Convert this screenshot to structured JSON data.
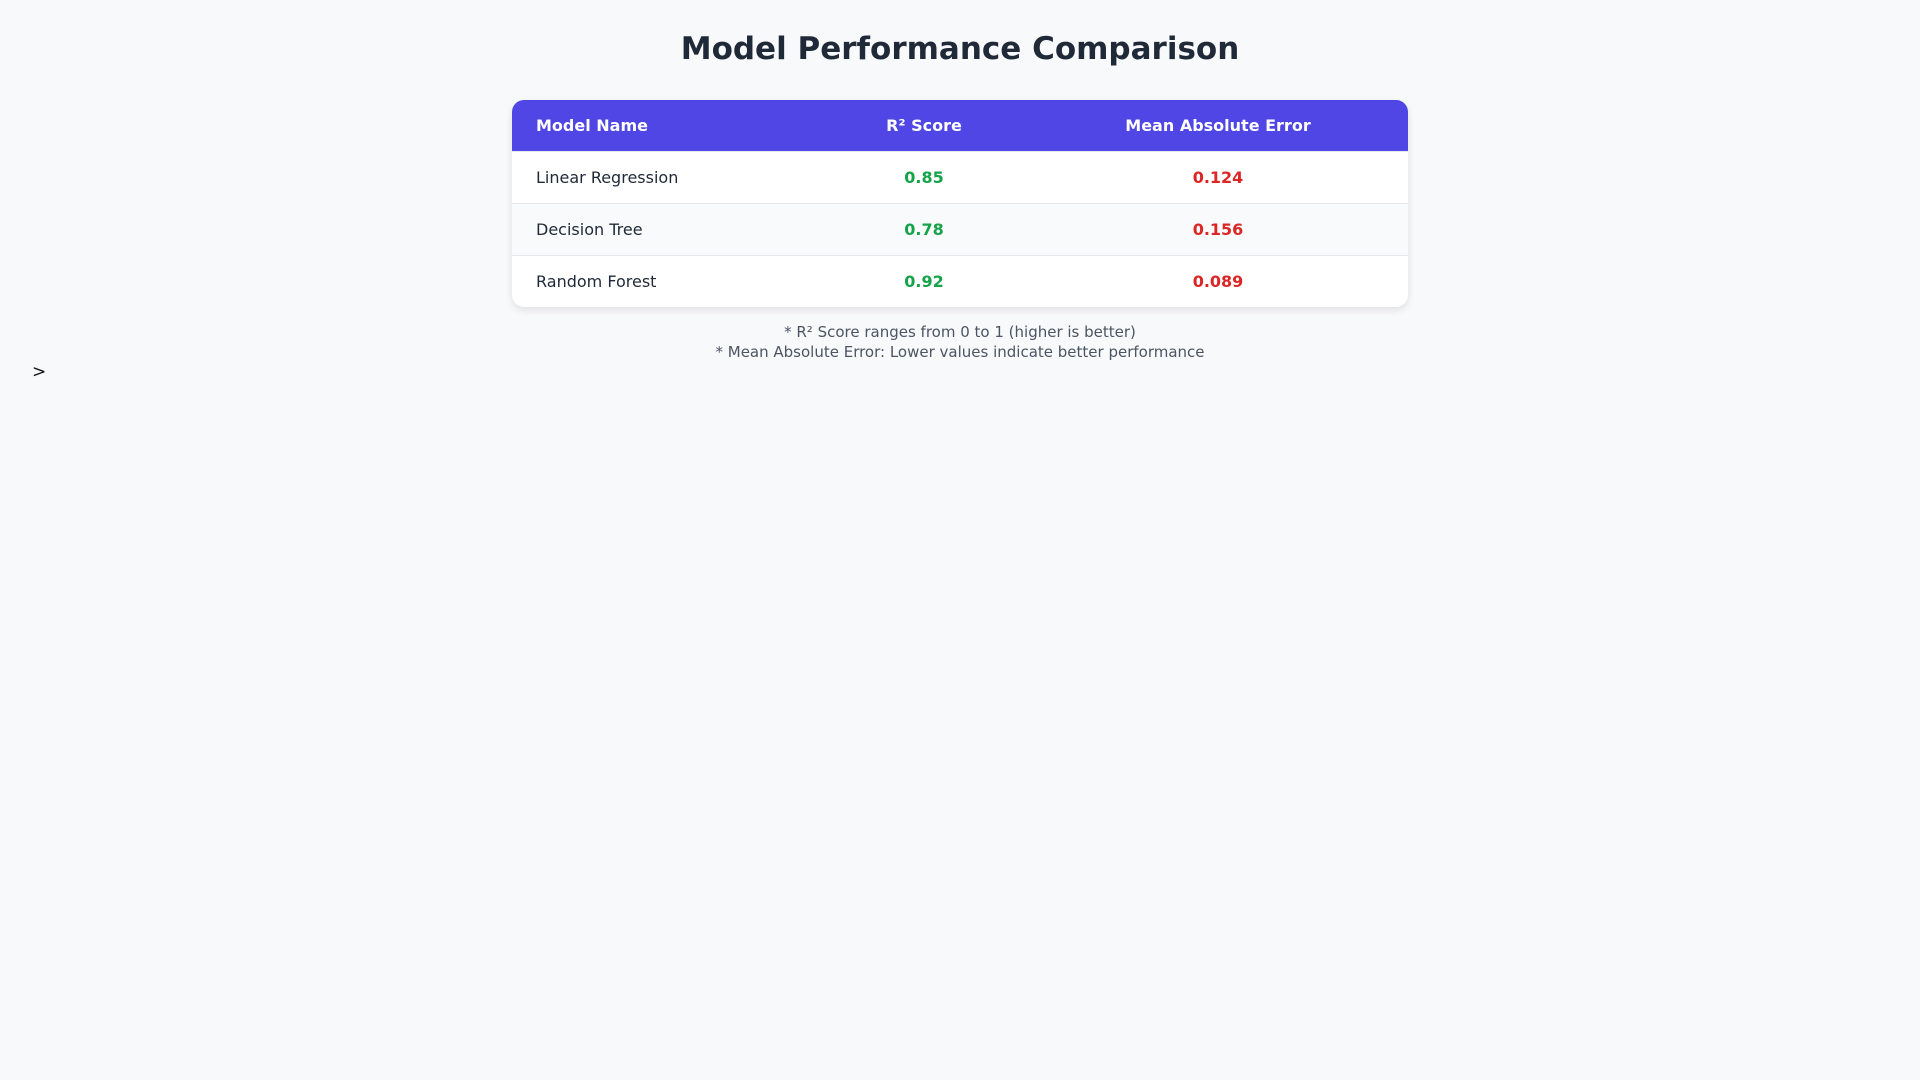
{
  "title": "Model Performance Comparison",
  "table": {
    "header": [
      "Model Name",
      "R² Score",
      "Mean Absolute Error"
    ],
    "rows": [
      [
        "Linear Regression",
        0.85,
        0.124
      ],
      [
        "Decision Tree",
        0.78,
        0.156
      ],
      [
        "Random Forest",
        0.92,
        0.089
      ]
    ]
  },
  "notes": [
    "* R² Score ranges from 0 to 1 (higher is better)",
    "* Mean Absolute Error: Lower values indicate better performance"
  ],
  "stray_text": ">"
}
